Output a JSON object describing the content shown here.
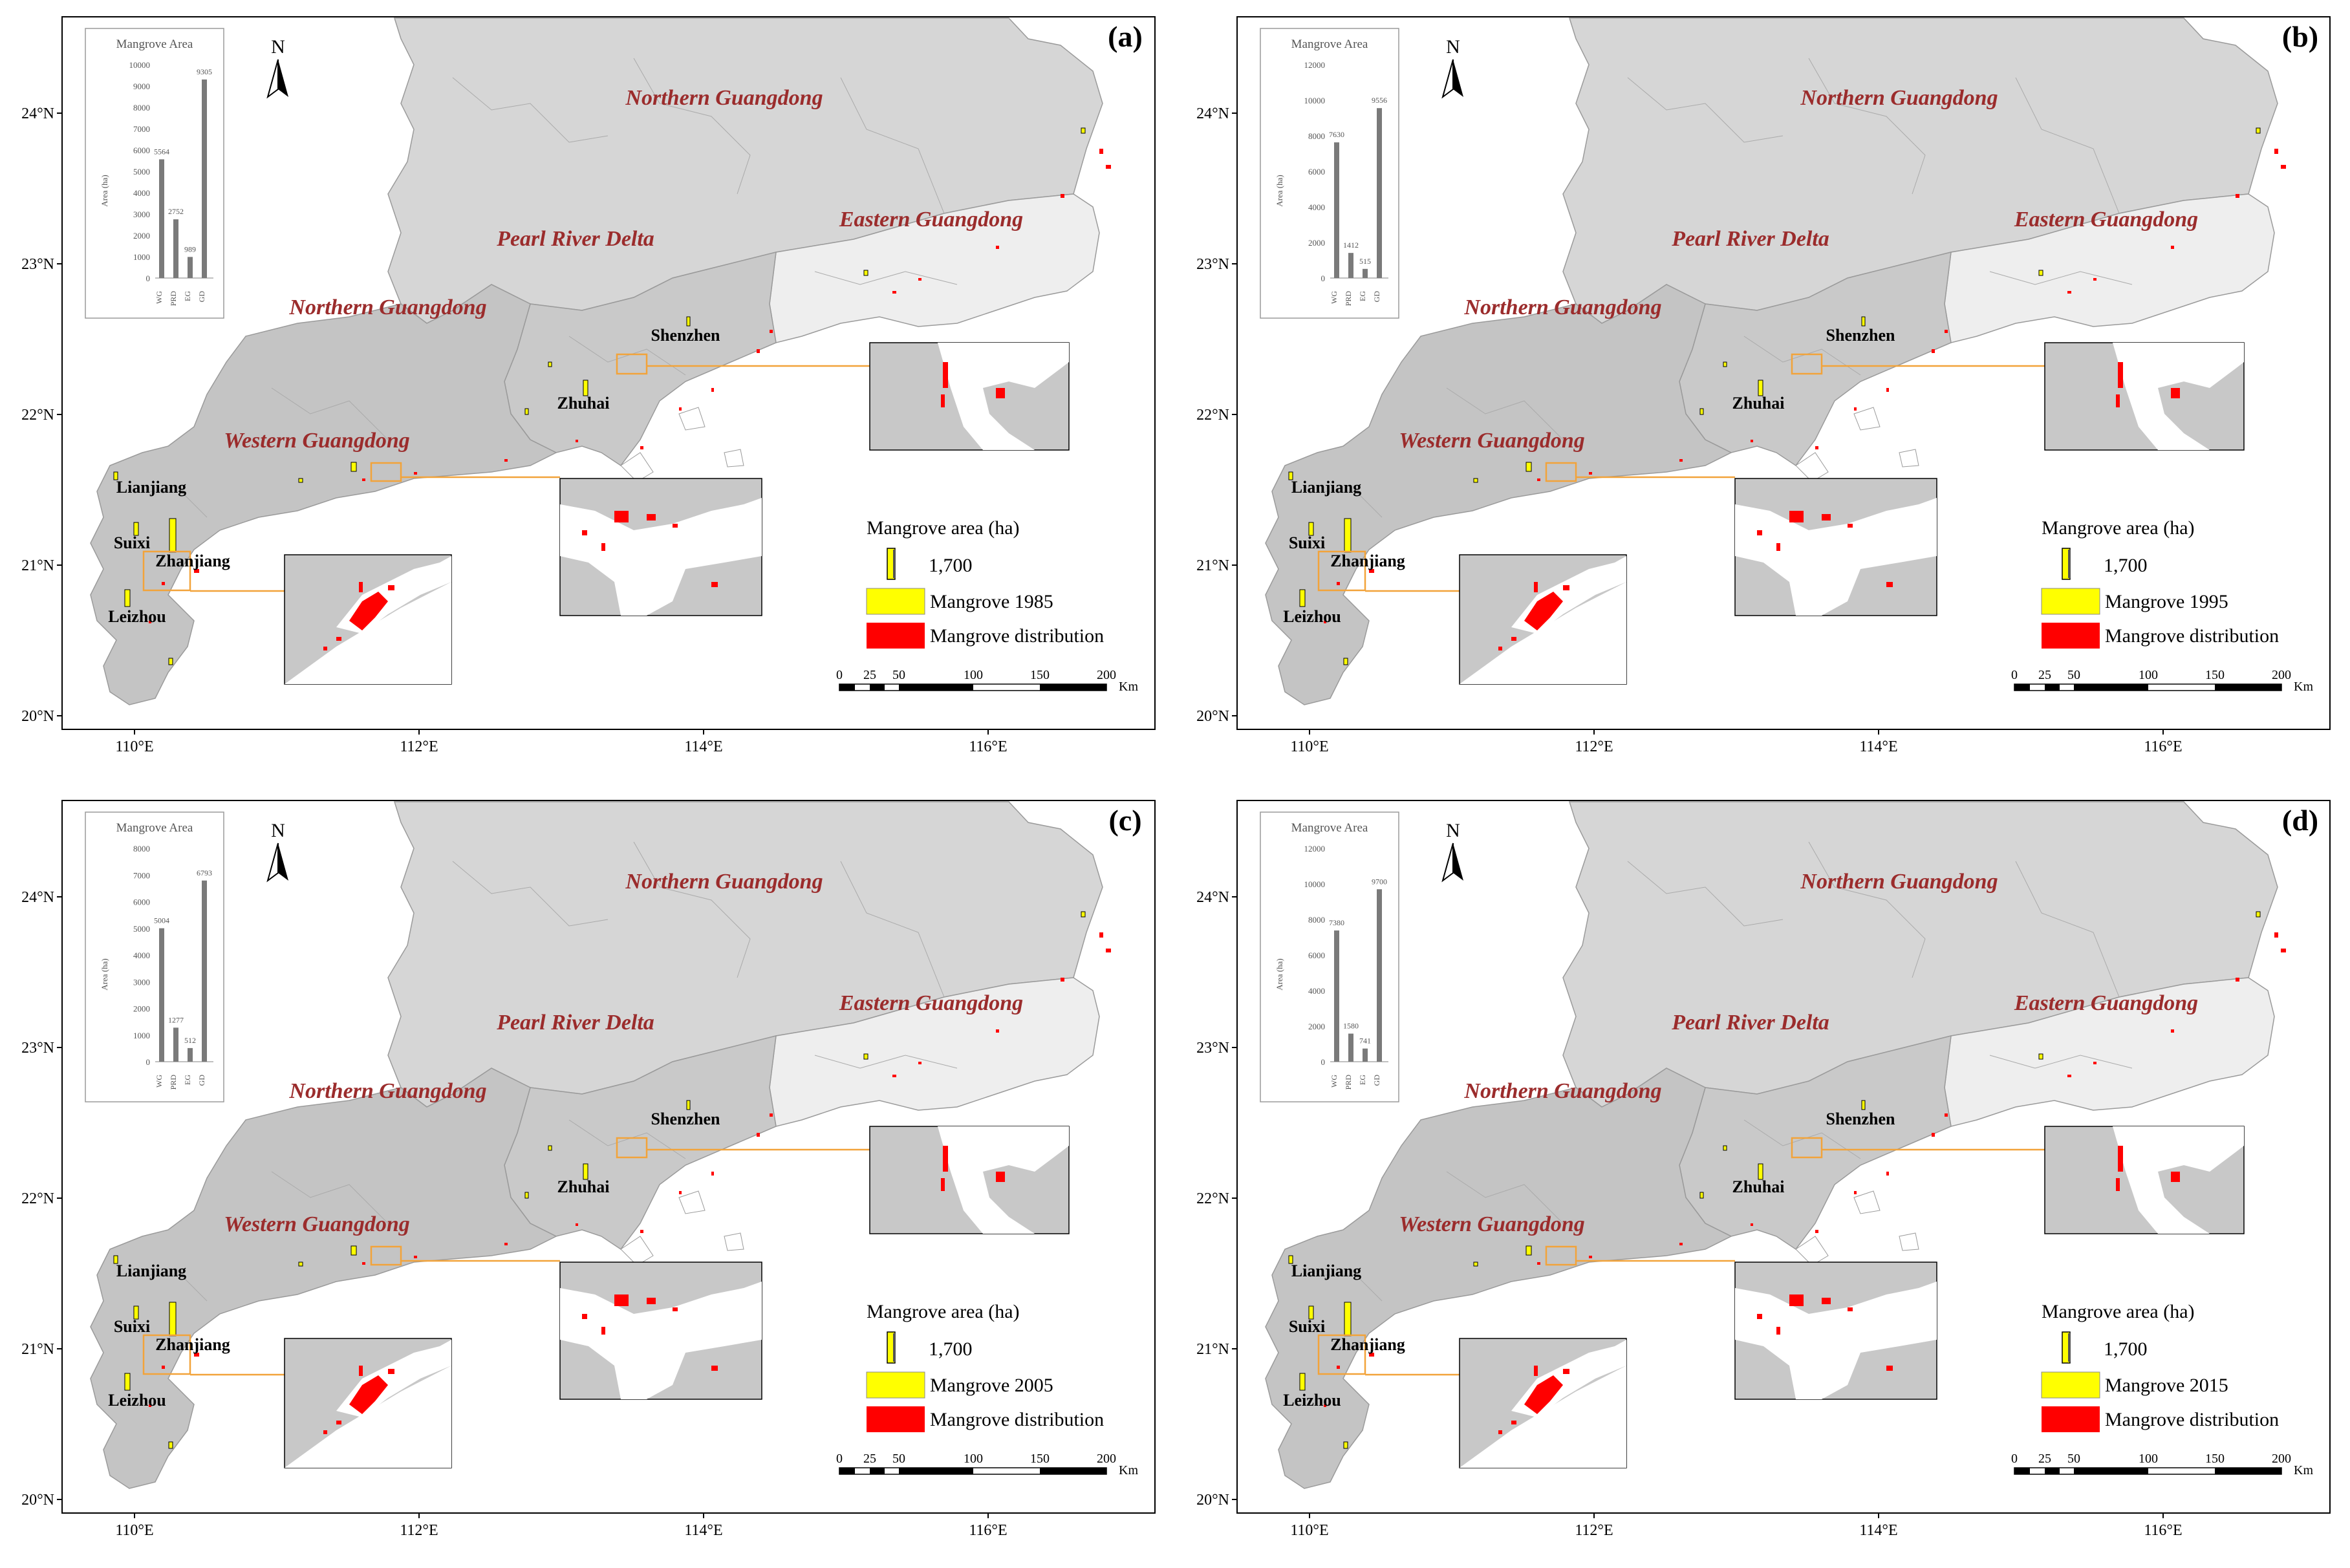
{
  "colors": {
    "land_dark": "#c4c4c4",
    "land_mid": "#d6d6d6",
    "land_light": "#eeeeee",
    "region_label": "#9b2c2c",
    "mangrove_bar": "#ffff00",
    "mangrove_red": "#ff0000",
    "inset_border": "#f2a33a",
    "bar_gray": "#7a7a7a"
  },
  "regions": {
    "northern1": "Northern Guangdong",
    "northern2": "Northern Guangdong",
    "prd": "Pearl River Delta",
    "eastern": "Eastern Guangdong",
    "western": "Western Guangdong"
  },
  "cities": {
    "shenzhen": "Shenzhen",
    "zhuhai": "Zhuhai",
    "lianjiang": "Lianjiang",
    "suixi": "Suixi",
    "zhanjiang": "Zhanjiang",
    "leizhou": "Leizhou"
  },
  "axes": {
    "lat": [
      "24°N",
      "23°N",
      "22°N",
      "21°N",
      "20°N"
    ],
    "lon": [
      "110°E",
      "112°E",
      "114°E",
      "116°E"
    ]
  },
  "north_label": "N",
  "inset_chart": {
    "title": "Mangrove Area",
    "ylabel": "Area (ha)",
    "categories": [
      "WG",
      "PRD",
      "EG",
      "GD"
    ]
  },
  "legend": {
    "title": "Mangrove area (ha)",
    "size_value": "1,700",
    "distribution": "Mangrove distribution"
  },
  "scale": {
    "ticks": [
      "0",
      "25",
      "50",
      "100",
      "150",
      "200"
    ],
    "unit": "Km"
  },
  "panels": [
    {
      "label": "(a)",
      "year_label": "Mangrove 1985",
      "yticks": [
        "0",
        "1000",
        "2000",
        "3000",
        "4000",
        "5000",
        "6000",
        "7000",
        "8000",
        "9000",
        "10000"
      ],
      "ymax": 10000,
      "values": [
        5564,
        2752,
        989,
        9305
      ],
      "value_labels": [
        "5564",
        "2752",
        "989",
        "9305"
      ]
    },
    {
      "label": "(b)",
      "year_label": "Mangrove 1995",
      "yticks": [
        "0",
        "2000",
        "4000",
        "6000",
        "8000",
        "10000",
        "12000"
      ],
      "ymax": 12000,
      "values": [
        7630,
        1412,
        515,
        9556
      ],
      "value_labels": [
        "7630",
        "1412",
        "515",
        "9556"
      ]
    },
    {
      "label": "(c)",
      "year_label": "Mangrove 2005",
      "yticks": [
        "0",
        "1000",
        "2000",
        "3000",
        "4000",
        "5000",
        "6000",
        "7000",
        "8000"
      ],
      "ymax": 8000,
      "values": [
        5004,
        1277,
        512,
        6793
      ],
      "value_labels": [
        "5004",
        "1277",
        "512",
        "6793"
      ]
    },
    {
      "label": "(d)",
      "year_label": "Mangrove 2015",
      "yticks": [
        "0",
        "2000",
        "4000",
        "6000",
        "8000",
        "10000",
        "12000"
      ],
      "ymax": 12000,
      "values": [
        7380,
        1580,
        741,
        9700
      ],
      "value_labels": [
        "7380",
        "1580",
        "741",
        "9700"
      ]
    }
  ]
}
